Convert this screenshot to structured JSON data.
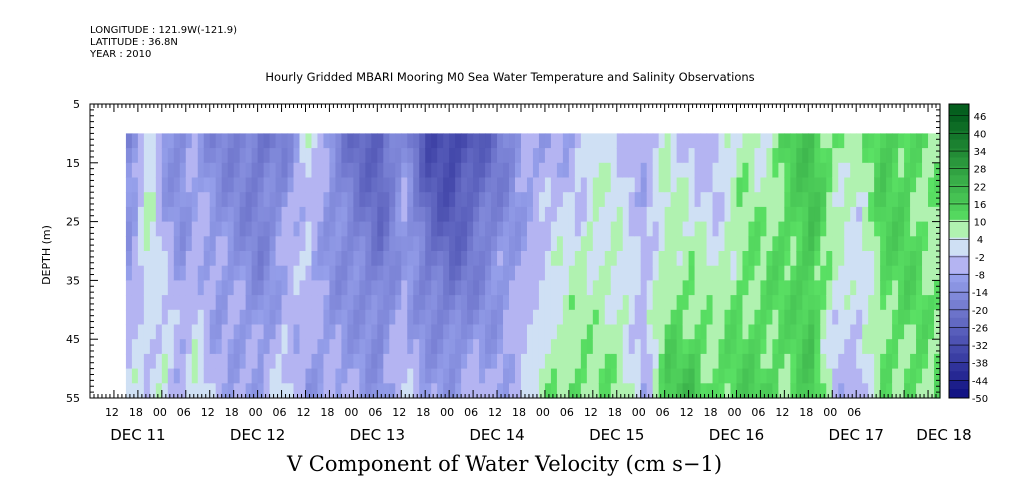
{
  "header": {
    "longitude": "LONGITUDE : 121.9W(-121.9)",
    "latitude": "LATITUDE : 36.8N",
    "year": "YEAR : 2010"
  },
  "title": "Hourly Gridded MBARI Mooring M0 Sea Water Temperature and Salinity Observations",
  "caption": "V Component of Water Velocity (cm s−1)",
  "chart_data": {
    "type": "heatmap",
    "title": "Hourly Gridded MBARI Mooring M0 Sea Water Temperature and Salinity Observations",
    "xlabel": "",
    "ylabel": "DEPTH (m)",
    "variable": "V Component of Water Velocity (cm s−1)",
    "y_axis": {
      "range": [
        5,
        55
      ],
      "inverted": true,
      "ticks": [
        5,
        15,
        25,
        35,
        45,
        55
      ],
      "minor_step": 1
    },
    "x_axis": {
      "start_hour": "12",
      "hour_ticks": [
        "12",
        "18",
        "00",
        "06",
        "12",
        "18",
        "00",
        "06",
        "12",
        "18",
        "00",
        "06",
        "12",
        "18",
        "00",
        "06",
        "12",
        "18",
        "00",
        "06",
        "12",
        "18",
        "00",
        "06",
        "12",
        "18",
        "00",
        "06",
        "12",
        "18",
        "00",
        "06"
      ],
      "day_labels": [
        "DEC 11",
        "DEC 12",
        "DEC 13",
        "DEC 14",
        "DEC 15",
        "DEC 16",
        "DEC 17",
        "DEC 18"
      ],
      "day_label_positions_hours": [
        0,
        30,
        60,
        90,
        120,
        150,
        180,
        202
      ]
    },
    "data_extent": {
      "depth_top": 10,
      "depth_bottom": 55
    },
    "colorbar": {
      "levels": [
        -50,
        -44,
        -38,
        -32,
        -26,
        -20,
        -14,
        -8,
        -2,
        4,
        10,
        16,
        22,
        28,
        34,
        40,
        46
      ],
      "min": -50,
      "max": 50,
      "step": 3,
      "colors": {
        "strong_negative": "#000060",
        "mid_negative": "#2050e0",
        "weak_negative": "#b0b0f0",
        "weak_positive": "#b0f0b0",
        "mid_positive": "#20d040",
        "strong_positive": "#006020"
      }
    },
    "time_profile": [
      {
        "t": 0,
        "surface": -12,
        "bottom": -12
      },
      {
        "t": 6,
        "surface": -14,
        "bottom": -8
      },
      {
        "t": 10,
        "surface": -16,
        "bottom": 2
      },
      {
        "t": 14,
        "surface": 8,
        "bottom": -2
      },
      {
        "t": 18,
        "surface": -12,
        "bottom": 6
      },
      {
        "t": 22,
        "surface": -14,
        "bottom": -6
      },
      {
        "t": 26,
        "surface": -10,
        "bottom": 4
      },
      {
        "t": 30,
        "surface": -14,
        "bottom": -4
      },
      {
        "t": 36,
        "surface": -16,
        "bottom": -6
      },
      {
        "t": 42,
        "surface": -20,
        "bottom": -8
      },
      {
        "t": 48,
        "surface": -16,
        "bottom": 2
      },
      {
        "t": 54,
        "surface": 2,
        "bottom": -10
      },
      {
        "t": 60,
        "surface": -14,
        "bottom": -8
      },
      {
        "t": 66,
        "surface": -22,
        "bottom": -6
      },
      {
        "t": 72,
        "surface": -26,
        "bottom": -10
      },
      {
        "t": 78,
        "surface": -12,
        "bottom": -4
      },
      {
        "t": 84,
        "surface": -30,
        "bottom": -6
      },
      {
        "t": 90,
        "surface": -34,
        "bottom": -8
      },
      {
        "t": 96,
        "surface": -28,
        "bottom": -4
      },
      {
        "t": 102,
        "surface": -18,
        "bottom": -6
      },
      {
        "t": 108,
        "surface": -10,
        "bottom": -2
      },
      {
        "t": 114,
        "surface": -8,
        "bottom": 8
      },
      {
        "t": 120,
        "surface": -6,
        "bottom": 14
      },
      {
        "t": 126,
        "surface": 2,
        "bottom": 8
      },
      {
        "t": 132,
        "surface": -2,
        "bottom": 10
      },
      {
        "t": 138,
        "surface": -6,
        "bottom": -4
      },
      {
        "t": 144,
        "surface": 2,
        "bottom": 16
      },
      {
        "t": 150,
        "surface": -4,
        "bottom": 20
      },
      {
        "t": 156,
        "surface": -6,
        "bottom": 12
      },
      {
        "t": 162,
        "surface": 6,
        "bottom": 14
      },
      {
        "t": 168,
        "surface": 4,
        "bottom": 16
      },
      {
        "t": 174,
        "surface": 14,
        "bottom": 10
      },
      {
        "t": 180,
        "surface": 18,
        "bottom": 16
      },
      {
        "t": 186,
        "surface": 10,
        "bottom": -4
      },
      {
        "t": 192,
        "surface": 6,
        "bottom": -6
      },
      {
        "t": 198,
        "surface": 16,
        "bottom": 8
      },
      {
        "t": 204,
        "surface": 14,
        "bottom": 12
      },
      {
        "t": 210,
        "surface": 8,
        "bottom": 10
      }
    ]
  }
}
